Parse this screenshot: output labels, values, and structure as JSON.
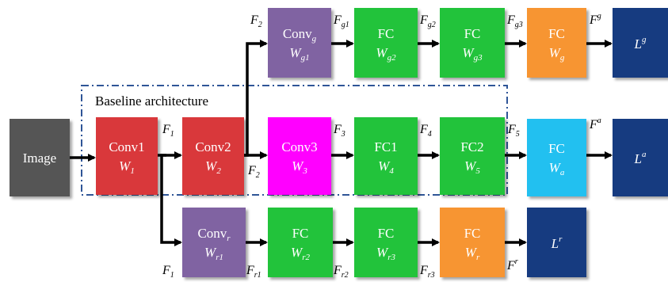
{
  "colors": {
    "image": "#555555",
    "conv_base": "#d9383a",
    "conv3": "#ff00ff",
    "conv_branch": "#8064a2",
    "fc": "#22c33a",
    "fc_out": "#f79533",
    "fc_attr": "#21c0f0",
    "loss": "#173b80",
    "region_border": "#2f5597"
  },
  "region": {
    "label": "Baseline architecture"
  },
  "nodes": {
    "image": {
      "main": "Image"
    },
    "conv1": {
      "main": "Conv1",
      "var": "W",
      "sub": "1"
    },
    "conv2": {
      "main": "Conv2",
      "var": "W",
      "sub": "2"
    },
    "conv3": {
      "main": "Conv3",
      "var": "W",
      "sub": "3"
    },
    "fc1": {
      "main": "FC1",
      "var": "W",
      "sub": "4"
    },
    "fc2": {
      "main": "FC2",
      "var": "W",
      "sub": "5"
    },
    "fc_a": {
      "main": "FC",
      "var": "W",
      "sub": "a"
    },
    "loss_a": {
      "var": "L",
      "sup": "a"
    },
    "conv_g": {
      "main": "Conv",
      "main_sub": "g",
      "var": "W",
      "sub": "g1"
    },
    "fc_g2": {
      "main": "FC",
      "var": "W",
      "sub": "g2"
    },
    "fc_g3": {
      "main": "FC",
      "var": "W",
      "sub": "g3"
    },
    "fc_g": {
      "main": "FC",
      "var": "W",
      "sub": "g"
    },
    "loss_g": {
      "var": "L",
      "sup": "g"
    },
    "conv_r": {
      "main": "Conv",
      "main_sub": "r",
      "var": "W",
      "sub": "r1"
    },
    "fc_r2": {
      "main": "FC",
      "var": "W",
      "sub": "r2"
    },
    "fc_r3": {
      "main": "FC",
      "var": "W",
      "sub": "r3"
    },
    "fc_r": {
      "main": "FC",
      "var": "W",
      "sub": "r"
    },
    "loss_r": {
      "var": "L",
      "sup": "r"
    }
  },
  "edge_labels": {
    "f1_mid": {
      "var": "F",
      "sub": "1"
    },
    "f2_mid": {
      "var": "F",
      "sub": "2"
    },
    "f3": {
      "var": "F",
      "sub": "3"
    },
    "f4": {
      "var": "F",
      "sub": "4"
    },
    "f5": {
      "var": "F",
      "sub": "5"
    },
    "fa": {
      "var": "F",
      "sup": "a"
    },
    "f2_top": {
      "var": "F",
      "sub": "2"
    },
    "fg1": {
      "var": "F",
      "sub": "g1"
    },
    "fg2": {
      "var": "F",
      "sub": "g2"
    },
    "fg3": {
      "var": "F",
      "sub": "g3"
    },
    "fg": {
      "var": "F",
      "sup": "g"
    },
    "f1_bot": {
      "var": "F",
      "sub": "1"
    },
    "fr1": {
      "var": "F",
      "sub": "r1"
    },
    "fr2": {
      "var": "F",
      "sub": "r2"
    },
    "fr3": {
      "var": "F",
      "sub": "r3"
    },
    "fr": {
      "var": "F",
      "sup": "r"
    }
  }
}
